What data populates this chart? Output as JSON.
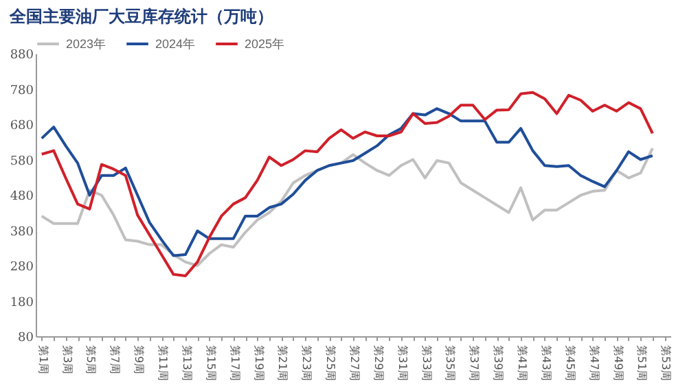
{
  "chart_data": {
    "type": "line",
    "title": "全国主要油厂大豆库存统计（万吨）",
    "categories": [
      "第1周",
      null,
      "第3周",
      null,
      "第5周",
      null,
      "第7周",
      null,
      "第9周",
      null,
      "第11周",
      null,
      "第13周",
      null,
      "第15周",
      null,
      "第17周",
      null,
      "第19周",
      null,
      "第21周",
      null,
      "第23周",
      null,
      "第25周",
      null,
      "第27周",
      null,
      "第29周",
      null,
      "第31周",
      null,
      "第33周",
      null,
      "第35周",
      null,
      "第37周",
      null,
      "第39周",
      null,
      "第41周",
      null,
      "第43周",
      null,
      "第45周",
      null,
      "第47周",
      null,
      "第49周",
      null,
      "第51周",
      null,
      "第53周"
    ],
    "series": [
      {
        "name": "2023年",
        "color": "#c0c0c0",
        "values": [
          420,
          399,
          399,
          399,
          493,
          479,
          423,
          353,
          349,
          339,
          339,
          311,
          290,
          280,
          314,
          339,
          332,
          374,
          409,
          430,
          462,
          514,
          535,
          549,
          563,
          570,
          594,
          570,
          549,
          535,
          563,
          580,
          528,
          577,
          570,
          514,
          493,
          472,
          451,
          430,
          500,
          409,
          437,
          437,
          458,
          479,
          490,
          493,
          549,
          528,
          542,
          612,
          null
        ]
      },
      {
        "name": "2024年",
        "color": "#1f4e99",
        "values": [
          640,
          672,
          619,
          570,
          479,
          535,
          535,
          556,
          479,
          402,
          353,
          308,
          311,
          378,
          356,
          356,
          356,
          420,
          420,
          444,
          454,
          482,
          521,
          549,
          563,
          570,
          577,
          598,
          619,
          650,
          668,
          710,
          706,
          724,
          710,
          689,
          689,
          689,
          629,
          629,
          668,
          605,
          563,
          560,
          563,
          535,
          518,
          503,
          549,
          602,
          580,
          591,
          null
        ]
      },
      {
        "name": "2025年",
        "color": "#d0202a",
        "values": [
          595,
          605,
          528,
          454,
          440,
          566,
          553,
          535,
          423,
          367,
          311,
          255,
          251,
          290,
          360,
          420,
          454,
          472,
          521,
          587,
          563,
          580,
          605,
          602,
          640,
          664,
          640,
          658,
          647,
          647,
          658,
          710,
          682,
          685,
          703,
          734,
          734,
          693,
          720,
          721,
          766,
          770,
          752,
          710,
          762,
          748,
          717,
          734,
          717,
          741,
          724,
          654,
          null
        ]
      }
    ],
    "ylim": [
      80,
      880
    ],
    "yticks": [
      80,
      180,
      280,
      380,
      480,
      580,
      680,
      780,
      880
    ],
    "legend": "top",
    "grid": false
  }
}
